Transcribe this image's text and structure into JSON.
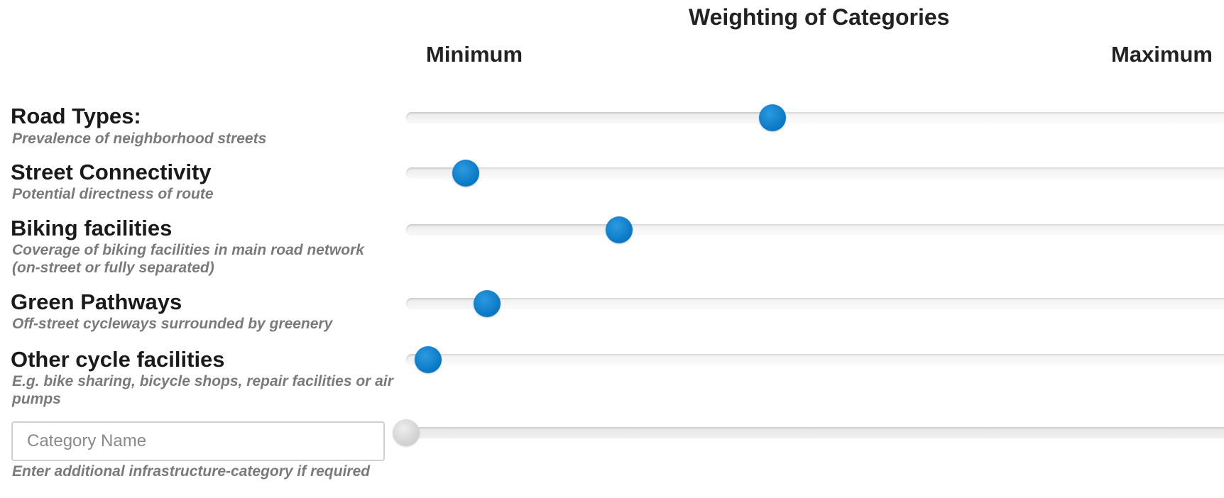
{
  "header": {
    "title": "Weighting of Categories",
    "min_label": "Minimum",
    "max_label": "Maximum"
  },
  "categories": [
    {
      "title": "Road Types:",
      "description": "Prevalence of neighborhood streets",
      "weight_fraction": 0.43
    },
    {
      "title": "Street Connectivity",
      "description": "Potential directness of route",
      "weight_fraction": 0.07
    },
    {
      "title": "Biking facilities",
      "description": "Coverage of biking facilities in main road network (on-street or fully separated)",
      "weight_fraction": 0.25
    },
    {
      "title": "Green Pathways",
      "description": "Off-street cycleways surrounded by greenery",
      "weight_fraction": 0.095
    },
    {
      "title": "Other cycle facilities",
      "description": "E.g. bike sharing, bicycle shops, repair facilities or air pumps",
      "weight_fraction": 0.026
    }
  ],
  "custom_category": {
    "placeholder": "Category Name",
    "value": "",
    "description": "Enter additional infrastructure-category if required",
    "weight_fraction": 0.0,
    "enabled": false
  },
  "colors": {
    "thumb_active": "#0a7cc8",
    "thumb_disabled": "#d6d6d6",
    "description_text": "#7a7a7a"
  }
}
